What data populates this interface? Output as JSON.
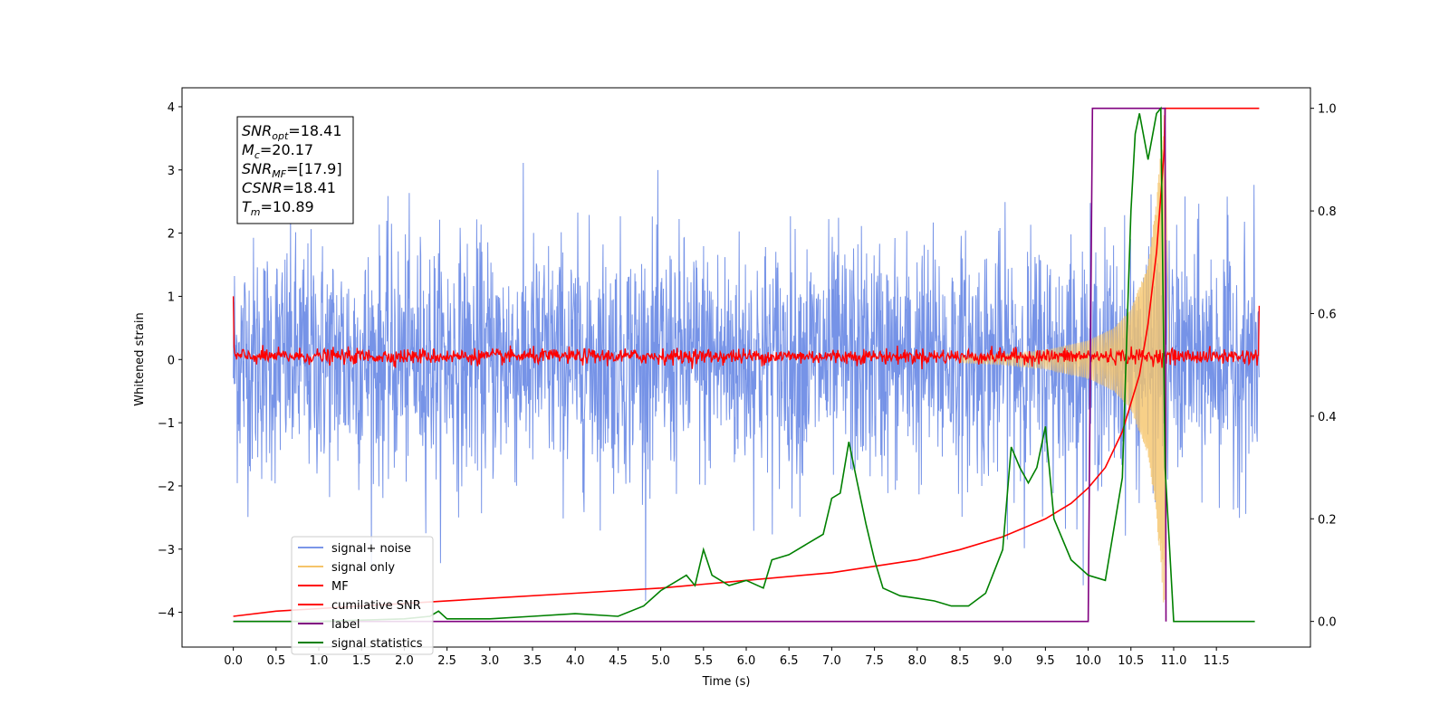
{
  "chart_data": {
    "type": "line",
    "xlabel": "Time (s)",
    "ylabel": "Whitened strain",
    "xlim": [
      -0.6,
      12.6
    ],
    "ylim": [
      -4.55,
      4.3
    ],
    "ylim_right": [
      -0.05,
      1.04
    ],
    "x_ticks": [
      "0.0",
      "0.5",
      "1.0",
      "1.5",
      "2.0",
      "2.5",
      "3.0",
      "3.5",
      "4.0",
      "4.5",
      "5.0",
      "5.5",
      "6.0",
      "6.5",
      "7.0",
      "7.5",
      "8.0",
      "8.5",
      "9.0",
      "9.5",
      "10.0",
      "10.5",
      "11.0",
      "11.5"
    ],
    "y_ticks": [
      "−4",
      "−3",
      "−2",
      "−1",
      "0",
      "1",
      "2",
      "3",
      "4"
    ],
    "y_right_ticks": [
      "0.0",
      "0.2",
      "0.4",
      "0.6",
      "0.8",
      "1.0"
    ],
    "annotation": {
      "lines": [
        {
          "base": "SNR",
          "sub": "opt",
          "value": "=18.41"
        },
        {
          "base": "M",
          "sub": "c",
          "value": "=20.17"
        },
        {
          "base": "SNR",
          "sub": "MF",
          "value": "=[17.9]"
        },
        {
          "base": "CSNR",
          "sub": "",
          "value": "=18.41"
        },
        {
          "base": "T",
          "sub": "m",
          "value": "=10.89"
        }
      ]
    },
    "legend": {
      "placement": "lower-left",
      "entries": [
        {
          "label": "signal+ noise",
          "color": "#7b96e8"
        },
        {
          "label": "signal only",
          "color": "#f5c46a"
        },
        {
          "label": "MF",
          "color": "#ff0000"
        },
        {
          "label": "cumilative SNR",
          "color": "#ff0000"
        },
        {
          "label": "label",
          "color": "#800080"
        },
        {
          "label": "signal statistics",
          "color": "#008000"
        }
      ]
    },
    "series": [
      {
        "name": "signal+ noise",
        "axis": "left",
        "color": "#6f8de6",
        "description_values": {
          "mean": 0.0,
          "std": 1.0,
          "duration_s": 12.0,
          "x_start": 0.0,
          "x_end": 12.0
        }
      },
      {
        "name": "signal only",
        "axis": "left",
        "color": "#f5c46a",
        "x": [
          8.5,
          9.0,
          9.5,
          10.0,
          10.3,
          10.5,
          10.7,
          10.8,
          10.89,
          10.95
        ],
        "amplitude": [
          0.05,
          0.08,
          0.15,
          0.3,
          0.5,
          0.8,
          1.5,
          2.5,
          4.0,
          0.0
        ]
      },
      {
        "name": "MF",
        "axis": "left",
        "color": "#ff0000",
        "x_start": 0.0,
        "x_end": 12.0,
        "level": 0.05,
        "jitter": 0.06
      },
      {
        "name": "cumilative SNR",
        "axis": "right",
        "color": "#ff0000",
        "x": [
          0.0,
          0.5,
          1.0,
          2.0,
          3.0,
          4.0,
          5.0,
          6.0,
          7.0,
          8.0,
          8.5,
          9.0,
          9.5,
          9.8,
          10.0,
          10.2,
          10.4,
          10.6,
          10.7,
          10.8,
          10.89,
          10.9,
          12.0
        ],
        "y": [
          0.01,
          0.02,
          0.025,
          0.035,
          0.045,
          0.055,
          0.065,
          0.08,
          0.095,
          0.12,
          0.14,
          0.165,
          0.2,
          0.23,
          0.26,
          0.3,
          0.37,
          0.48,
          0.58,
          0.72,
          0.92,
          1.0,
          1.0
        ]
      },
      {
        "name": "label",
        "axis": "right",
        "color": "#800080",
        "x": [
          0.0,
          10.0,
          10.05,
          10.9,
          10.91
        ],
        "y": [
          0.0,
          0.0,
          1.0,
          1.0,
          0.0
        ]
      },
      {
        "name": "signal statistics",
        "axis": "right",
        "color": "#008000",
        "x": [
          0.0,
          1.0,
          2.0,
          2.3,
          2.4,
          2.5,
          3.0,
          3.5,
          4.0,
          4.5,
          4.8,
          5.0,
          5.2,
          5.3,
          5.4,
          5.5,
          5.6,
          5.8,
          6.0,
          6.2,
          6.3,
          6.5,
          6.7,
          6.9,
          7.0,
          7.1,
          7.2,
          7.3,
          7.4,
          7.5,
          7.6,
          7.8,
          8.0,
          8.2,
          8.4,
          8.6,
          8.8,
          9.0,
          9.1,
          9.2,
          9.3,
          9.4,
          9.5,
          9.6,
          9.8,
          10.0,
          10.2,
          10.4,
          10.45,
          10.5,
          10.55,
          10.6,
          10.7,
          10.8,
          10.85,
          10.9,
          11.0,
          11.5,
          11.95
        ],
        "y": [
          0.0,
          0.0,
          0.005,
          0.01,
          0.02,
          0.005,
          0.005,
          0.01,
          0.015,
          0.01,
          0.03,
          0.06,
          0.08,
          0.09,
          0.07,
          0.14,
          0.09,
          0.07,
          0.08,
          0.065,
          0.12,
          0.13,
          0.15,
          0.17,
          0.24,
          0.25,
          0.35,
          0.27,
          0.19,
          0.12,
          0.065,
          0.05,
          0.045,
          0.04,
          0.03,
          0.03,
          0.055,
          0.14,
          0.34,
          0.3,
          0.27,
          0.3,
          0.38,
          0.2,
          0.12,
          0.09,
          0.08,
          0.28,
          0.55,
          0.8,
          0.95,
          0.99,
          0.9,
          0.99,
          1.0,
          0.3,
          0.0,
          0.0,
          0.0
        ]
      }
    ]
  }
}
